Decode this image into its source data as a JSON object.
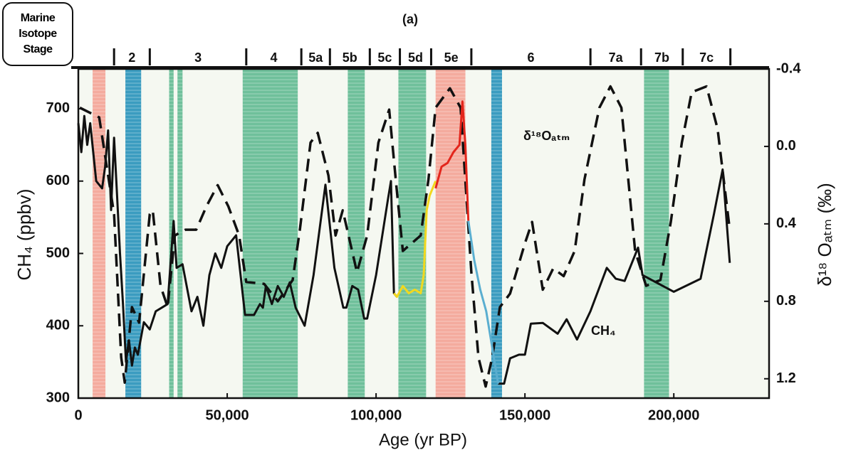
{
  "chart_data": {
    "type": "line",
    "title": "(a)",
    "x_label": "Age (yr BP)",
    "y_label": "CH₄ (ppbv)",
    "y2_label": "δ¹⁸ Oₐₜₘ (‰)",
    "xlim": [
      0,
      232000
    ],
    "xticks": [
      0,
      {
        "value": 50000,
        "label": "50,000"
      },
      {
        "value": 100000,
        "label": "100,000"
      },
      {
        "value": 150000,
        "label": "150,000"
      },
      {
        "value": 200000,
        "label": "200,000"
      }
    ],
    "ylim": [
      300,
      755
    ],
    "yticks": [
      300,
      400,
      500,
      600,
      700
    ],
    "y2lim": [
      -0.4,
      1.3
    ],
    "y2_inverted": true,
    "y2ticks": [
      -0.4,
      {
        "value": 0,
        "label": "0.0"
      },
      0.4,
      0.8,
      1.2
    ],
    "stages": {
      "label": "Marine Isotope Stage",
      "boundaries": [
        12000,
        24000,
        56400,
        74900,
        84500,
        97900,
        108000,
        118500,
        132000,
        172000,
        189000,
        203000,
        219000
      ],
      "names": [
        "2",
        "3",
        "4",
        "5a",
        "5b",
        "5c",
        "5d",
        "5e",
        "6",
        "7a",
        "7b",
        "7c"
      ]
    },
    "bands": [
      {
        "x": [
          4800,
          9100
        ],
        "color": "#f4ab9e"
      },
      {
        "x": [
          15800,
          21100
        ],
        "color": "#3b9cc0"
      },
      {
        "x": [
          30500,
          32000
        ],
        "color": "#6fc09b"
      },
      {
        "x": [
          33300,
          35000
        ],
        "color": "#6fc09b"
      },
      {
        "x": [
          55200,
          73700
        ],
        "color": "#6fc09b"
      },
      {
        "x": [
          90500,
          96200
        ],
        "color": "#6fc09b"
      },
      {
        "x": [
          107500,
          116800
        ],
        "color": "#6fc09b"
      },
      {
        "x": [
          120000,
          130000
        ],
        "color": "#f4ab9e"
      },
      {
        "x": [
          138700,
          142300
        ],
        "color": "#3b9cc0"
      },
      {
        "x": [
          190000,
          198400
        ],
        "color": "#6fc09b"
      }
    ],
    "series": [
      {
        "name": "δ¹⁸Oₐₜₘ",
        "color": "#111111",
        "dash": true,
        "axis": "y2",
        "x": [
          500,
          7000,
          12000,
          14400,
          15600,
          18000,
          20400,
          24000,
          25000,
          27600,
          30000,
          32400,
          36000,
          39600,
          43000,
          46800,
          50400,
          54000,
          56400,
          62400,
          67000,
          72000,
          74400,
          78000,
          80400,
          84000,
          86400,
          88800,
          93600,
          97000,
          100800,
          104400,
          106800,
          109000,
          115000,
          117600,
          120000,
          124800,
          128400,
          132000,
          134400,
          136800,
          139000,
          141600,
          145000,
          150000,
          152400,
          156000,
          159500,
          163000,
          166700,
          170000,
          175000,
          178700,
          182400,
          187000,
          190700,
          195500,
          199000,
          202700,
          206000,
          211000,
          214700,
          218800
        ],
        "values": [
          -0.2,
          -0.15,
          0.35,
          1.09,
          1.22,
          0.83,
          0.91,
          0.35,
          0.33,
          0.72,
          0.83,
          0.46,
          0.43,
          0.43,
          0.31,
          0.2,
          0.31,
          0.46,
          0.7,
          0.71,
          0.8,
          0.69,
          0.43,
          -0.02,
          -0.07,
          0.15,
          0.46,
          0.33,
          0.65,
          0.46,
          -0.02,
          -0.19,
          0.2,
          0.54,
          0.46,
          0.17,
          -0.2,
          -0.3,
          -0.2,
          0.65,
          1.09,
          1.24,
          1.09,
          0.83,
          0.76,
          0.5,
          0.39,
          0.74,
          0.63,
          0.67,
          0.54,
          0.17,
          -0.2,
          -0.31,
          -0.2,
          0.54,
          0.72,
          0.69,
          0.39,
          -0.02,
          -0.28,
          -0.31,
          -0.09,
          0.43
        ]
      },
      {
        "name": "CH₄",
        "color": "#111111",
        "dash": false,
        "x": [
          0,
          1000,
          2000,
          3000,
          4000,
          6000,
          8000,
          9000,
          10000,
          11000,
          12000,
          13000,
          14000,
          15000,
          16000,
          17000,
          18000,
          19000,
          20000,
          22000,
          24000,
          26000,
          28000,
          30000,
          32000,
          33000,
          35000,
          38000,
          40000,
          42000,
          44000,
          46000,
          48000,
          50000,
          53000,
          56000,
          59000,
          61000,
          62000,
          63000,
          65000,
          67000,
          69000,
          71000,
          73000,
          76000,
          79000,
          83000,
          86000,
          89000,
          90000,
          92000,
          94000,
          96000,
          97000,
          100000,
          104000,
          105000,
          106000,
          107000,
          125000,
          141000,
          143000,
          145000,
          148000,
          150000,
          152000,
          156000,
          161000,
          164000,
          167500,
          172000,
          177500,
          180500,
          183500,
          188000,
          189500,
          200000,
          209000,
          213500,
          216400,
          218800
        ],
        "values": [
          680,
          640,
          690,
          650,
          680,
          600,
          590,
          620,
          670,
          560,
          660,
          580,
          500,
          430,
          350,
          380,
          345,
          370,
          360,
          405,
          395,
          420,
          425,
          430,
          545,
          480,
          485,
          420,
          440,
          400,
          470,
          500,
          480,
          510,
          525,
          415,
          415,
          430,
          425,
          455,
          430,
          455,
          440,
          460,
          425,
          400,
          470,
          595,
          480,
          425,
          425,
          455,
          450,
          410,
          410,
          470,
          575,
          600,
          445,
          440,
          null,
          320,
          320,
          355,
          360,
          360,
          403,
          404,
          389,
          409,
          381,
          420,
          480,
          465,
          462,
          508,
          470,
          447,
          465,
          555,
          616,
          487
        ]
      },
      {
        "color": "#f2d81e",
        "dash": false,
        "x": [
          106000,
          107000,
          109000,
          111000,
          113000,
          115000,
          116000,
          117000,
          118000,
          120000
        ],
        "values": [
          445,
          440,
          455,
          445,
          450,
          445,
          470,
          560,
          580,
          600
        ]
      },
      {
        "color": "#e3261c",
        "dash": false,
        "x": [
          120000,
          122000,
          124000,
          126000,
          128000,
          129000,
          130000,
          131000
        ],
        "values": [
          590,
          620,
          625,
          640,
          650,
          710,
          650,
          545
        ]
      },
      {
        "color": "#5aaed0",
        "dash": false,
        "x": [
          131000,
          133000,
          135000,
          137000,
          139000,
          141000
        ],
        "values": [
          545,
          490,
          450,
          420,
          370,
          320
        ]
      }
    ]
  }
}
